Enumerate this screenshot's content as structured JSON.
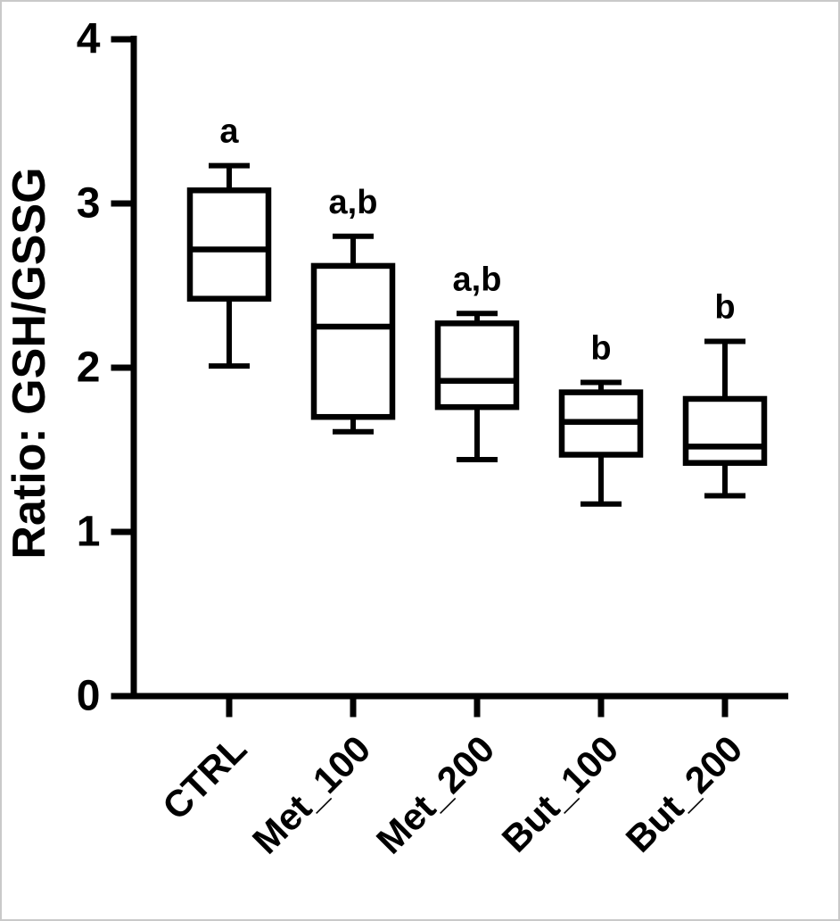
{
  "figure": {
    "background": "#ffffff",
    "border_color": "#c9c9c9",
    "axis_color": "#000000"
  },
  "chart_data": {
    "type": "box",
    "title": "",
    "xlabel": "",
    "ylabel": "Ratio: GSH/GSSG",
    "ylim": [
      0,
      4
    ],
    "yticks": [
      "0",
      "1",
      "2",
      "3",
      "4"
    ],
    "grid": false,
    "legend": false,
    "box_fill": "none",
    "box_color": "#000000",
    "categories": [
      "CTRL",
      "Met_100",
      "Met_200",
      "But_100",
      "But_200"
    ],
    "series": [
      {
        "category": "CTRL",
        "min": 2.01,
        "q1": 2.42,
        "median": 2.72,
        "q3": 3.08,
        "max": 3.23,
        "annotation": "a"
      },
      {
        "category": "Met_100",
        "min": 1.61,
        "q1": 1.7,
        "median": 2.25,
        "q3": 2.62,
        "max": 2.8,
        "annotation": "a,b"
      },
      {
        "category": "Met_200",
        "min": 1.44,
        "q1": 1.76,
        "median": 1.92,
        "q3": 2.27,
        "max": 2.33,
        "annotation": "a,b"
      },
      {
        "category": "But_100",
        "min": 1.17,
        "q1": 1.47,
        "median": 1.67,
        "q3": 1.85,
        "max": 1.91,
        "annotation": "b"
      },
      {
        "category": "But_200",
        "min": 1.22,
        "q1": 1.42,
        "median": 1.52,
        "q3": 1.81,
        "max": 2.16,
        "annotation": "b"
      }
    ]
  }
}
